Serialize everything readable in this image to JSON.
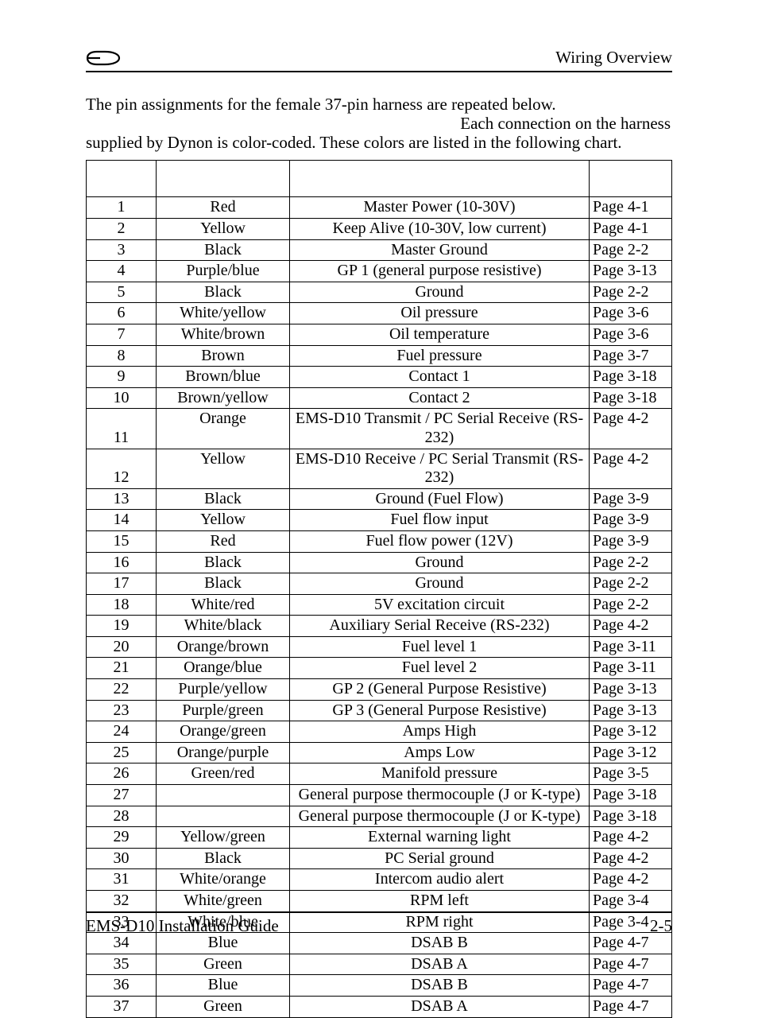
{
  "header": {
    "title": "Wiring Overview"
  },
  "intro": {
    "line1": "The pin assignments for the female 37-pin harness are repeated below.",
    "line2_indent": " ",
    "line2": "Each connection on the harness",
    "line3": "supplied by Dynon is color-coded. These colors are listed in the following chart."
  },
  "table": {
    "headers": {
      "pin": "",
      "color": "",
      "func": "",
      "ref": ""
    },
    "rows": [
      {
        "pin": "1",
        "color": "Red",
        "func": "Master Power (10-30V)",
        "ref": "Page 4-1"
      },
      {
        "pin": "2",
        "color": "Yellow",
        "func": "Keep Alive (10-30V, low current)",
        "ref": "Page 4-1"
      },
      {
        "pin": "3",
        "color": "Black",
        "func": "Master Ground",
        "ref": "Page 2-2"
      },
      {
        "pin": "4",
        "color": "Purple/blue",
        "func": "GP 1 (general purpose resistive)",
        "ref": "Page 3-13"
      },
      {
        "pin": "5",
        "color": "Black",
        "func": "Ground",
        "ref": "Page 2-2"
      },
      {
        "pin": "6",
        "color": "White/yellow",
        "func": "Oil pressure",
        "ref": "Page 3-6"
      },
      {
        "pin": "7",
        "color": "White/brown",
        "func": "Oil temperature",
        "ref": "Page 3-6"
      },
      {
        "pin": "8",
        "color": "Brown",
        "func": "Fuel pressure",
        "ref": "Page 3-7"
      },
      {
        "pin": "9",
        "color": "Brown/blue",
        "func": "Contact 1",
        "ref": "Page 3-18"
      },
      {
        "pin": "10",
        "color": "Brown/yellow",
        "func": "Contact 2",
        "ref": "Page 3-18"
      },
      {
        "pin": "11",
        "color": "Orange",
        "func": "EMS-D10 Transmit / PC Serial Receive (RS-232)",
        "ref": "Page 4-2",
        "twoLine": true
      },
      {
        "pin": "12",
        "color": "Yellow",
        "func": "EMS-D10 Receive / PC Serial Transmit (RS-232)",
        "ref": "Page 4-2",
        "twoLine": true
      },
      {
        "pin": "13",
        "color": "Black",
        "func": "Ground (Fuel Flow)",
        "ref": "Page 3-9"
      },
      {
        "pin": "14",
        "color": "Yellow",
        "func": "Fuel flow input",
        "ref": "Page 3-9"
      },
      {
        "pin": "15",
        "color": "Red",
        "func": "Fuel flow power (12V)",
        "ref": "Page 3-9"
      },
      {
        "pin": "16",
        "color": "Black",
        "func": "Ground",
        "ref": "Page 2-2"
      },
      {
        "pin": "17",
        "color": "Black",
        "func": "Ground",
        "ref": "Page 2-2"
      },
      {
        "pin": "18",
        "color": "White/red",
        "func": "5V excitation circuit",
        "ref": "Page 2-2"
      },
      {
        "pin": "19",
        "color": "White/black",
        "func": "Auxiliary Serial Receive (RS-232)",
        "ref": "Page 4-2"
      },
      {
        "pin": "20",
        "color": "Orange/brown",
        "func": "Fuel level 1",
        "ref": "Page 3-11"
      },
      {
        "pin": "21",
        "color": "Orange/blue",
        "func": "Fuel level 2",
        "ref": "Page 3-11"
      },
      {
        "pin": "22",
        "color": "Purple/yellow",
        "func": "GP 2 (General Purpose Resistive)",
        "ref": "Page 3-13"
      },
      {
        "pin": "23",
        "color": "Purple/green",
        "func": "GP 3 (General Purpose Resistive)",
        "ref": "Page 3-13"
      },
      {
        "pin": "24",
        "color": "Orange/green",
        "func": "Amps High",
        "ref": "Page 3-12"
      },
      {
        "pin": "25",
        "color": "Orange/purple",
        "func": "Amps Low",
        "ref": "Page 3-12"
      },
      {
        "pin": "26",
        "color": "Green/red",
        "func": "Manifold pressure",
        "ref": "Page 3-5"
      },
      {
        "pin": "27",
        "color": "",
        "func": "General purpose thermocouple (J or K-type)",
        "ref": "Page 3-18"
      },
      {
        "pin": "28",
        "color": "",
        "func": "General purpose thermocouple (J or K-type)",
        "ref": "Page 3-18"
      },
      {
        "pin": "29",
        "color": "Yellow/green",
        "func": "External warning light",
        "ref": "Page 4-2"
      },
      {
        "pin": "30",
        "color": "Black",
        "func": "PC Serial ground",
        "ref": "Page 4-2"
      },
      {
        "pin": "31",
        "color": "White/orange",
        "func": "Intercom audio alert",
        "ref": "Page 4-2"
      },
      {
        "pin": "32",
        "color": "White/green",
        "func": "RPM left",
        "ref": "Page 3-4"
      },
      {
        "pin": "33",
        "color": "White/blue",
        "func": "RPM right",
        "ref": "Page 3-4"
      },
      {
        "pin": "34",
        "color": "Blue",
        "func": "DSAB B",
        "ref": "Page 4-7"
      },
      {
        "pin": "35",
        "color": "Green",
        "func": "DSAB A",
        "ref": "Page 4-7"
      },
      {
        "pin": "36",
        "color": "Blue",
        "func": "DSAB B",
        "ref": "Page 4-7"
      },
      {
        "pin": "37",
        "color": "Green",
        "func": "DSAB A",
        "ref": "Page 4-7"
      }
    ]
  },
  "footer": {
    "left": "EMS-D10 Installation Guide",
    "right": "2-5"
  }
}
